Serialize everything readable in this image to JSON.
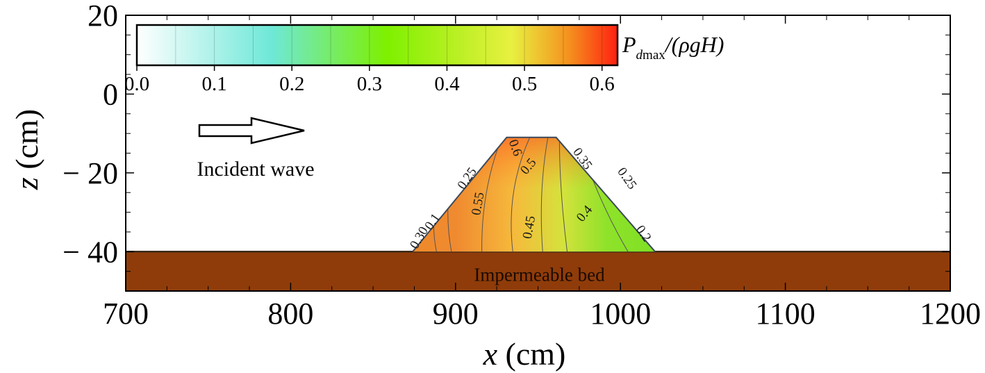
{
  "chart_data": {
    "type": "contour",
    "xlabel_var": "x",
    "xlabel_unit": " (cm)",
    "ylabel_var": "z",
    "ylabel_unit": " (cm)",
    "xlim": [
      700,
      1200
    ],
    "ylim": [
      -50,
      20
    ],
    "x_ticks": [
      700,
      800,
      900,
      1000,
      1100,
      1200
    ],
    "x_tick_labels": [
      "700",
      "800",
      "900",
      "1000",
      "1100",
      "1200"
    ],
    "y_ticks": [
      20,
      0,
      -20,
      -40
    ],
    "y_tick_labels": [
      "20",
      "0",
      "− 20",
      "− 40"
    ],
    "colorbar": {
      "range": [
        0.0,
        0.62
      ],
      "ticks": [
        0.0,
        0.1,
        0.2,
        0.3,
        0.4,
        0.5,
        0.6
      ],
      "tick_labels": [
        "0.0",
        "0.1",
        "0.2",
        "0.3",
        "0.4",
        "0.5",
        "0.6"
      ],
      "label_main": "P",
      "label_sub": "d",
      "label_sub2": "max",
      "label_rest": "/(ρgH)",
      "colors": [
        "#ffffff",
        "#6ee8d8",
        "#7ef000",
        "#e8f040",
        "#f5901e",
        "#ff2010"
      ]
    },
    "arrow_label": "Incident wave",
    "bed_label": "Impermeable bed",
    "bed_top_z": -40,
    "breakwater": {
      "toe_left_x": 874,
      "crest_left_x": 931,
      "crest_right_x": 961,
      "toe_right_x": 1021,
      "crest_z": -11,
      "base_z": -40
    },
    "contour_labels": [
      {
        "text": "0.6",
        "x": 934,
        "z": -14,
        "angle": 70
      },
      {
        "text": "0.5",
        "x": 946,
        "z": -19,
        "angle": -50
      },
      {
        "text": "0.55",
        "x": 916,
        "z": -28,
        "angle": -80
      },
      {
        "text": "0.25",
        "x": 909,
        "z": -22,
        "angle": -55
      },
      {
        "text": "0.1",
        "x": 888,
        "z": -33,
        "angle": -55
      },
      {
        "text": "0.30",
        "x": 880,
        "z": -37,
        "angle": -60
      },
      {
        "text": "0.45",
        "x": 947,
        "z": -34,
        "angle": -80
      },
      {
        "text": "0.4",
        "x": 980,
        "z": -31,
        "angle": -50
      },
      {
        "text": "0.35",
        "x": 975,
        "z": -17,
        "angle": 55
      },
      {
        "text": "0.25",
        "x": 1002,
        "z": -22,
        "angle": 55
      },
      {
        "text": "0.2",
        "x": 1012,
        "z": -36,
        "angle": 55
      }
    ]
  }
}
